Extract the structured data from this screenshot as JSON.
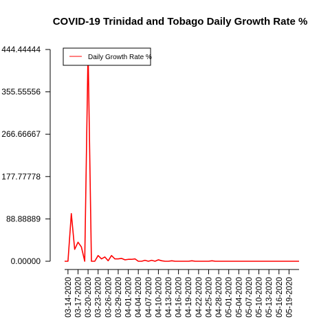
{
  "chart_data": {
    "type": "line",
    "title": "COVID-19 Trinidad and Tobago Daily Growth Rate %",
    "xlabel": "",
    "ylabel": "",
    "y_ticks": [
      "0.00000",
      "88.88889",
      "177.77778",
      "266.66667",
      "355.55556",
      "444.44444"
    ],
    "y_tick_values": [
      0,
      88.88889,
      177.77778,
      266.66667,
      355.55556,
      444.44444
    ],
    "ylim": [
      0,
      444.44444
    ],
    "x_ticks": [
      "03-14-2020",
      "03-17-2020",
      "03-20-2020",
      "03-23-2020",
      "03-26-2020",
      "03-29-2020",
      "04-01-2020",
      "04-04-2020",
      "04-07-2020",
      "04-10-2020",
      "04-13-2020",
      "04-16-2020",
      "04-19-2020",
      "04-22-2020",
      "04-25-2020",
      "04-28-2020",
      "05-01-2020",
      "05-04-2020",
      "05-07-2020",
      "05-10-2020",
      "05-13-2020",
      "05-16-2020",
      "05-19-2020"
    ],
    "legend_placement": "top-left",
    "grid": false,
    "series": [
      {
        "name": "Daily Growth Rate %",
        "color": "#ff0000",
        "x": [
          "03-13-2020",
          "03-14-2020",
          "03-15-2020",
          "03-16-2020",
          "03-17-2020",
          "03-18-2020",
          "03-19-2020",
          "03-20-2020",
          "03-21-2020",
          "03-22-2020",
          "03-23-2020",
          "03-24-2020",
          "03-25-2020",
          "03-26-2020",
          "03-27-2020",
          "03-28-2020",
          "03-29-2020",
          "03-30-2020",
          "03-31-2020",
          "04-01-2020",
          "04-02-2020",
          "04-03-2020",
          "04-04-2020",
          "04-05-2020",
          "04-06-2020",
          "04-07-2020",
          "04-08-2020",
          "04-09-2020",
          "04-10-2020",
          "04-11-2020",
          "04-12-2020",
          "04-13-2020",
          "04-14-2020",
          "04-15-2020",
          "04-16-2020",
          "04-17-2020",
          "04-18-2020",
          "04-19-2020",
          "04-20-2020",
          "04-21-2020",
          "04-22-2020",
          "04-23-2020",
          "04-24-2020",
          "04-25-2020",
          "04-26-2020",
          "04-27-2020",
          "04-28-2020",
          "04-29-2020",
          "04-30-2020",
          "05-01-2020",
          "05-02-2020",
          "05-03-2020",
          "05-04-2020",
          "05-05-2020",
          "05-06-2020",
          "05-07-2020",
          "05-08-2020",
          "05-09-2020",
          "05-10-2020",
          "05-11-2020",
          "05-12-2020",
          "05-13-2020",
          "05-14-2020",
          "05-15-2020",
          "05-16-2020",
          "05-17-2020",
          "05-18-2020",
          "05-19-2020",
          "05-20-2020",
          "05-21-2020",
          "05-22-2020"
        ],
        "values": [
          0,
          0,
          100,
          25,
          40,
          30,
          0,
          444.44444,
          0,
          0,
          12,
          5,
          9,
          1,
          12,
          5,
          5,
          6,
          3,
          4,
          4,
          5,
          0,
          0,
          2,
          0,
          2,
          0,
          3,
          1,
          0,
          0,
          1,
          0,
          0,
          0,
          0,
          0,
          1,
          0,
          0,
          0,
          0,
          0,
          1,
          0,
          0,
          0,
          0,
          0,
          0,
          0,
          0,
          0,
          0,
          0,
          0,
          0,
          0,
          0,
          0,
          0,
          0,
          0,
          0,
          0,
          0,
          0,
          0,
          0,
          0
        ]
      }
    ]
  }
}
